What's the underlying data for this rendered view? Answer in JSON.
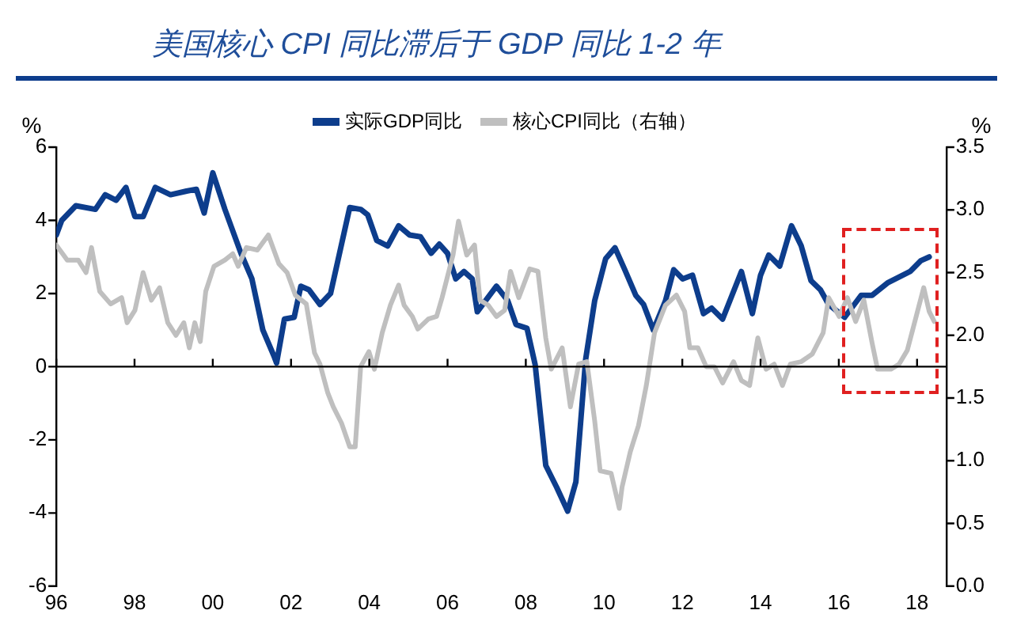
{
  "chart_data": {
    "type": "line",
    "title": "美国核心 CPI 同比滞后于 GDP 同比 1-2 年",
    "ylabel": "%",
    "y2label": "%",
    "xlim": [
      1996,
      2018.75
    ],
    "xticks": [
      {
        "value": 1996,
        "label": "96"
      },
      {
        "value": 1998,
        "label": "98"
      },
      {
        "value": 2000,
        "label": "00"
      },
      {
        "value": 2002,
        "label": "02"
      },
      {
        "value": 2004,
        "label": "04"
      },
      {
        "value": 2006,
        "label": "06"
      },
      {
        "value": 2008,
        "label": "08"
      },
      {
        "value": 2010,
        "label": "10"
      },
      {
        "value": 2012,
        "label": "12"
      },
      {
        "value": 2014,
        "label": "14"
      },
      {
        "value": 2016,
        "label": "16"
      },
      {
        "value": 2018,
        "label": "18"
      }
    ],
    "ylim": [
      -6,
      6
    ],
    "yticks": [
      -6,
      -4,
      -2,
      0,
      2,
      4,
      6
    ],
    "y2lim": [
      0,
      3.5
    ],
    "y2ticks": [
      {
        "value": 0,
        "label": "0.0"
      },
      {
        "value": 0.5,
        "label": "0.5"
      },
      {
        "value": 1,
        "label": "1.0"
      },
      {
        "value": 1.5,
        "label": "1.5"
      },
      {
        "value": 2,
        "label": "2.0"
      },
      {
        "value": 2.5,
        "label": "2.5"
      },
      {
        "value": 3,
        "label": "3.0"
      },
      {
        "value": 3.5,
        "label": "3.5"
      }
    ],
    "ref_lines": [
      {
        "axis": "y",
        "value": 0,
        "color": "#000000"
      }
    ],
    "legend": "top",
    "grid": false,
    "marker": "none",
    "line_style": "solid",
    "series": [
      {
        "name": "实际GDP同比",
        "color": "#0d3d8c",
        "x": [
          1996.0,
          1996.14,
          1996.5,
          1997.0,
          1997.25,
          1997.53,
          1997.78,
          1998.01,
          1998.22,
          1998.53,
          1998.92,
          1999.33,
          1999.58,
          1999.78,
          2000.0,
          2000.31,
          2000.72,
          2001.0,
          2001.28,
          2001.56,
          2001.63,
          2001.83,
          2002.08,
          2002.25,
          2002.46,
          2002.74,
          2003.01,
          2003.5,
          2003.78,
          2003.96,
          2004.19,
          2004.47,
          2004.75,
          2005.03,
          2005.31,
          2005.58,
          2005.79,
          2006.0,
          2006.21,
          2006.42,
          2006.63,
          2006.76,
          2006.97,
          2007.25,
          2007.54,
          2007.75,
          2008.03,
          2008.24,
          2008.51,
          2008.79,
          2009.07,
          2009.28,
          2009.53,
          2009.76,
          2010.04,
          2010.28,
          2010.53,
          2010.81,
          2011.01,
          2011.26,
          2011.57,
          2011.78,
          2012.01,
          2012.26,
          2012.54,
          2012.75,
          2013.03,
          2013.51,
          2013.79,
          2014.0,
          2014.21,
          2014.49,
          2014.79,
          2015.04,
          2015.29,
          2015.53,
          2015.74,
          2016.15,
          2016.57,
          2016.85,
          2017.26,
          2017.82,
          2018.1,
          2018.31
        ],
        "values": [
          3.6,
          4.0,
          4.4,
          4.3,
          4.7,
          4.55,
          4.9,
          4.1,
          4.1,
          4.9,
          4.7,
          4.8,
          4.85,
          4.2,
          5.3,
          4.3,
          3.1,
          2.4,
          1.0,
          0.3,
          0.1,
          1.3,
          1.35,
          2.2,
          2.1,
          1.7,
          2.0,
          4.35,
          4.3,
          4.15,
          3.45,
          3.3,
          3.85,
          3.6,
          3.55,
          3.1,
          3.35,
          3.1,
          2.4,
          2.6,
          2.4,
          1.5,
          1.8,
          2.2,
          1.8,
          1.15,
          1.05,
          0.05,
          -2.7,
          -3.3,
          -3.95,
          -3.15,
          0.2,
          1.8,
          2.95,
          3.25,
          2.65,
          1.95,
          1.7,
          1.0,
          1.8,
          2.65,
          2.4,
          2.5,
          1.45,
          1.6,
          1.3,
          2.6,
          1.45,
          2.5,
          3.05,
          2.75,
          3.85,
          3.3,
          2.35,
          2.1,
          1.7,
          1.35,
          1.95,
          1.95,
          2.3,
          2.6,
          2.9,
          3.0
        ]
      },
      {
        "name": "核心CPI同比（右轴）",
        "color": "#bfbfbf",
        "axis": "y2",
        "x": [
          1996.0,
          1996.28,
          1996.56,
          1996.76,
          1996.9,
          1997.11,
          1997.39,
          1997.67,
          1997.81,
          1998.01,
          1998.22,
          1998.43,
          1998.64,
          1998.85,
          1999.06,
          1999.26,
          1999.4,
          1999.54,
          1999.68,
          1999.82,
          2000.03,
          2000.31,
          2000.51,
          2000.65,
          2000.86,
          2001.14,
          2001.42,
          2001.69,
          2001.9,
          2002.11,
          2002.39,
          2002.6,
          2002.74,
          2002.94,
          2003.08,
          2003.29,
          2003.5,
          2003.64,
          2003.78,
          2003.99,
          2004.13,
          2004.33,
          2004.54,
          2004.75,
          2004.89,
          2005.1,
          2005.24,
          2005.51,
          2005.72,
          2005.86,
          2006.14,
          2006.28,
          2006.49,
          2006.69,
          2006.83,
          2007.04,
          2007.25,
          2007.46,
          2007.61,
          2007.82,
          2008.1,
          2008.31,
          2008.51,
          2008.65,
          2008.93,
          2009.14,
          2009.35,
          2009.56,
          2009.76,
          2009.9,
          2010.18,
          2010.39,
          2010.46,
          2010.67,
          2010.88,
          2011.08,
          2011.29,
          2011.57,
          2011.85,
          2012.06,
          2012.19,
          2012.4,
          2012.61,
          2012.82,
          2013.03,
          2013.31,
          2013.51,
          2013.72,
          2013.93,
          2014.14,
          2014.35,
          2014.56,
          2014.76,
          2015.04,
          2015.32,
          2015.6,
          2015.74,
          2016.01,
          2016.22,
          2016.43,
          2016.64,
          2016.85,
          2016.99,
          2017.33,
          2017.54,
          2017.75,
          2017.96,
          2018.17,
          2018.31,
          2018.44
        ],
        "values": [
          2.72,
          2.6,
          2.6,
          2.5,
          2.7,
          2.35,
          2.25,
          2.3,
          2.1,
          2.2,
          2.5,
          2.28,
          2.38,
          2.1,
          2.0,
          2.1,
          1.9,
          2.1,
          1.95,
          2.35,
          2.55,
          2.6,
          2.65,
          2.55,
          2.7,
          2.68,
          2.8,
          2.57,
          2.5,
          2.32,
          2.25,
          1.86,
          1.77,
          1.54,
          1.43,
          1.3,
          1.11,
          1.11,
          1.75,
          1.87,
          1.73,
          2.02,
          2.24,
          2.4,
          2.24,
          2.15,
          2.05,
          2.13,
          2.15,
          2.3,
          2.64,
          2.91,
          2.64,
          2.72,
          2.28,
          2.24,
          2.15,
          2.2,
          2.51,
          2.3,
          2.53,
          2.51,
          1.98,
          1.73,
          1.9,
          1.43,
          1.77,
          1.79,
          1.32,
          0.92,
          0.9,
          0.62,
          0.79,
          1.07,
          1.28,
          1.6,
          2.02,
          2.24,
          2.32,
          2.19,
          1.9,
          1.9,
          1.75,
          1.75,
          1.62,
          1.79,
          1.64,
          1.6,
          1.98,
          1.73,
          1.77,
          1.6,
          1.77,
          1.79,
          1.85,
          2.02,
          2.3,
          2.15,
          2.3,
          2.11,
          2.28,
          1.94,
          1.73,
          1.73,
          1.77,
          1.88,
          2.13,
          2.38,
          2.19,
          2.11
        ]
      }
    ]
  }
}
